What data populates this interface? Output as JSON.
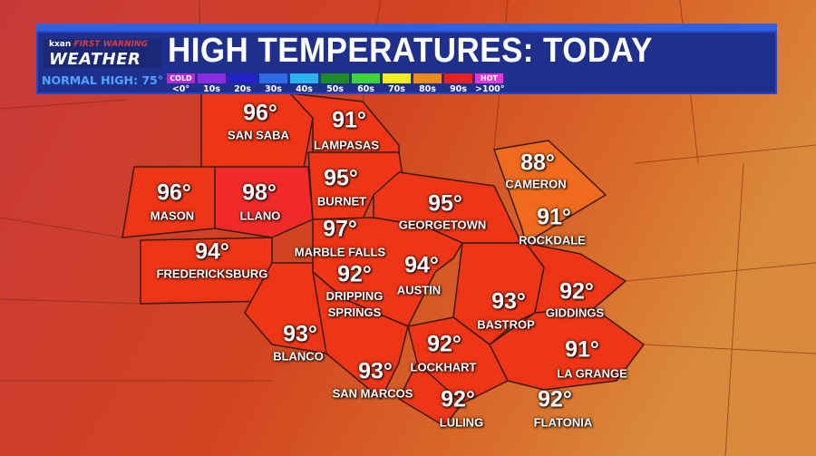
{
  "header": {
    "brand": "kxan",
    "brand_tag": "FIRST WARNING",
    "brand_sub": "WEATHER",
    "title": "HIGH TEMPERATURES: TODAY",
    "normal_high": "NORMAL HIGH: 75°"
  },
  "legend": [
    {
      "top": "COLD",
      "label": "<0°",
      "color": "#b42ad8"
    },
    {
      "top": "",
      "label": "10s",
      "color": "#8a2be2"
    },
    {
      "top": "",
      "label": "20s",
      "color": "#2323c8"
    },
    {
      "top": "",
      "label": "30s",
      "color": "#2e6be6"
    },
    {
      "top": "",
      "label": "40s",
      "color": "#2bb3ee"
    },
    {
      "top": "",
      "label": "50s",
      "color": "#1e8a2a"
    },
    {
      "top": "",
      "label": "60s",
      "color": "#3fd33a"
    },
    {
      "top": "",
      "label": "70s",
      "color": "#f2ee1c"
    },
    {
      "top": "",
      "label": "80s",
      "color": "#f08a1a"
    },
    {
      "top": "",
      "label": "90s",
      "color": "#e52222"
    },
    {
      "top": "HOT",
      "label": ">100°",
      "color": "#e13ad8"
    }
  ],
  "cities": [
    {
      "name": "SAN SABA",
      "temp": "96°"
    },
    {
      "name": "LAMPASAS",
      "temp": "91°"
    },
    {
      "name": "MASON",
      "temp": "96°"
    },
    {
      "name": "LLANO",
      "temp": "98°"
    },
    {
      "name": "BURNET",
      "temp": "95°"
    },
    {
      "name": "GEORGETOWN",
      "temp": "95°"
    },
    {
      "name": "CAMERON",
      "temp": "88°"
    },
    {
      "name": "ROCKDALE",
      "temp": "91°"
    },
    {
      "name": "MARBLE FALLS",
      "temp": "97°"
    },
    {
      "name": "FREDERICKSBURG",
      "temp": "94°"
    },
    {
      "name": "DRIPPING SPRINGS",
      "temp": "92°"
    },
    {
      "name": "AUSTIN",
      "temp": "94°"
    },
    {
      "name": "BASTROP",
      "temp": "93°"
    },
    {
      "name": "GIDDINGS",
      "temp": "92°"
    },
    {
      "name": "BLANCO",
      "temp": "93°"
    },
    {
      "name": "LOCKHART",
      "temp": "92°"
    },
    {
      "name": "LA GRANGE",
      "temp": "91°"
    },
    {
      "name": "SAN MARCOS",
      "temp": "93°"
    },
    {
      "name": "LULING",
      "temp": "92°"
    },
    {
      "name": "FLATONIA",
      "temp": "92°"
    }
  ]
}
